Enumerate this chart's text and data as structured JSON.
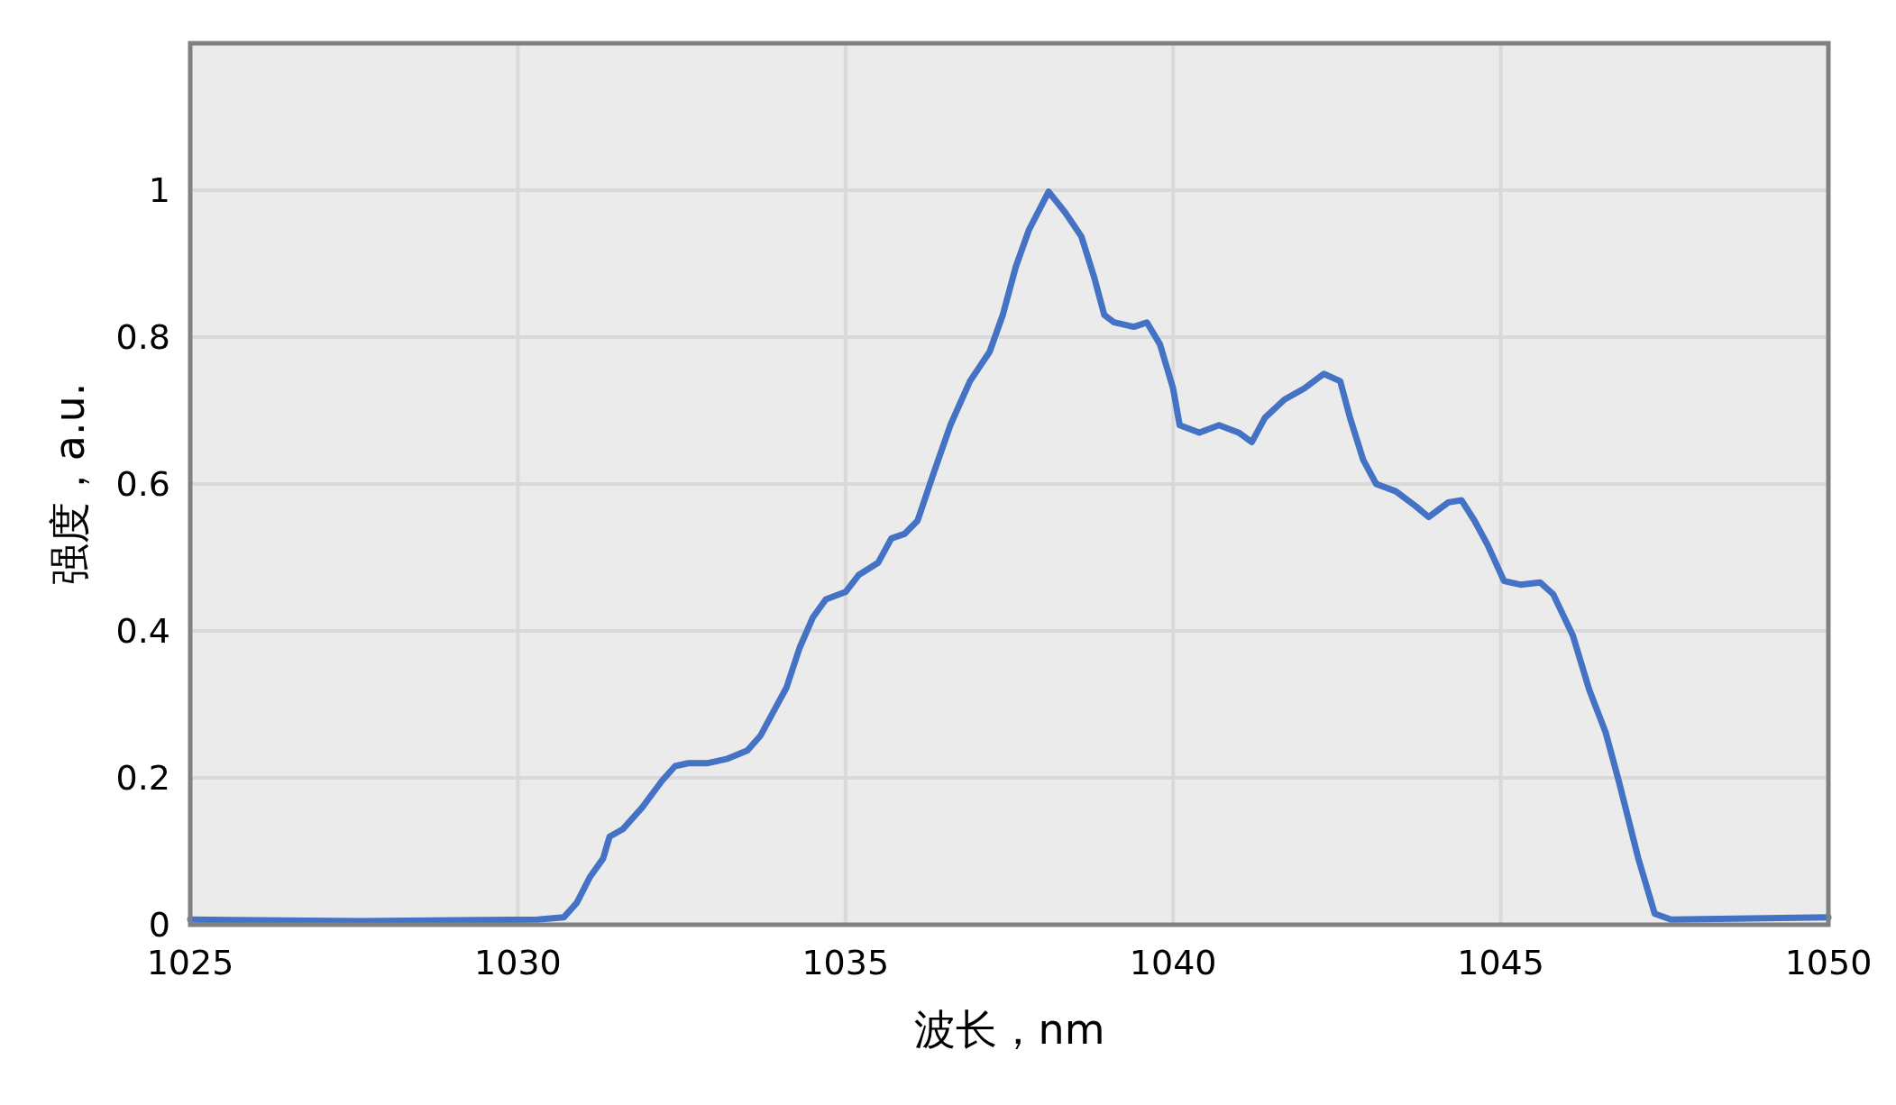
{
  "chart_data": {
    "type": "line",
    "xlabel": "波长，nm",
    "ylabel": "强度，a.u.",
    "xlim": [
      1025,
      1050
    ],
    "xticks": [
      1025,
      1030,
      1035,
      1040,
      1045,
      1050
    ],
    "ylim": [
      0,
      1.2
    ],
    "yticks": [
      0,
      0.2,
      0.4,
      0.6,
      0.8,
      1
    ],
    "grid": true,
    "series": [
      {
        "color": "#4472c4",
        "x": [
          1025,
          1027.6,
          1030.3,
          1030.7,
          1030.9,
          1031.1,
          1031.3,
          1031.4,
          1031.6,
          1031.9,
          1032.2,
          1032.4,
          1032.6,
          1032.9,
          1033.2,
          1033.5,
          1033.7,
          1033.9,
          1034.1,
          1034.3,
          1034.5,
          1034.7,
          1035,
          1035.2,
          1035.5,
          1035.7,
          1035.9,
          1036.1,
          1036.35,
          1036.6,
          1036.9,
          1037.2,
          1037.4,
          1037.6,
          1037.8,
          1038.1,
          1038.35,
          1038.6,
          1038.8,
          1038.95,
          1039.1,
          1039.4,
          1039.6,
          1039.8,
          1040,
          1040.1,
          1040.4,
          1040.7,
          1041,
          1041.2,
          1041.4,
          1041.7,
          1042,
          1042.3,
          1042.55,
          1042.7,
          1042.9,
          1043.1,
          1043.4,
          1043.7,
          1043.9,
          1044.2,
          1044.4,
          1044.6,
          1044.8,
          1045.05,
          1045.3,
          1045.6,
          1045.8,
          1046.1,
          1046.35,
          1046.6,
          1046.8,
          1047.1,
          1047.35,
          1047.6,
          1050
        ],
        "values": [
          0.007,
          0.005,
          0.007,
          0.01,
          0.03,
          0.065,
          0.09,
          0.12,
          0.13,
          0.16,
          0.196,
          0.216,
          0.22,
          0.22,
          0.226,
          0.237,
          0.257,
          0.29,
          0.323,
          0.377,
          0.418,
          0.443,
          0.453,
          0.476,
          0.493,
          0.526,
          0.532,
          0.55,
          0.616,
          0.68,
          0.74,
          0.78,
          0.83,
          0.896,
          0.946,
          0.998,
          0.97,
          0.937,
          0.88,
          0.83,
          0.82,
          0.814,
          0.82,
          0.79,
          0.73,
          0.68,
          0.67,
          0.68,
          0.67,
          0.657,
          0.69,
          0.715,
          0.73,
          0.75,
          0.74,
          0.69,
          0.633,
          0.6,
          0.59,
          0.57,
          0.555,
          0.575,
          0.578,
          0.55,
          0.517,
          0.468,
          0.463,
          0.466,
          0.45,
          0.394,
          0.32,
          0.262,
          0.196,
          0.09,
          0.015,
          0.007,
          0.01
        ]
      }
    ]
  }
}
